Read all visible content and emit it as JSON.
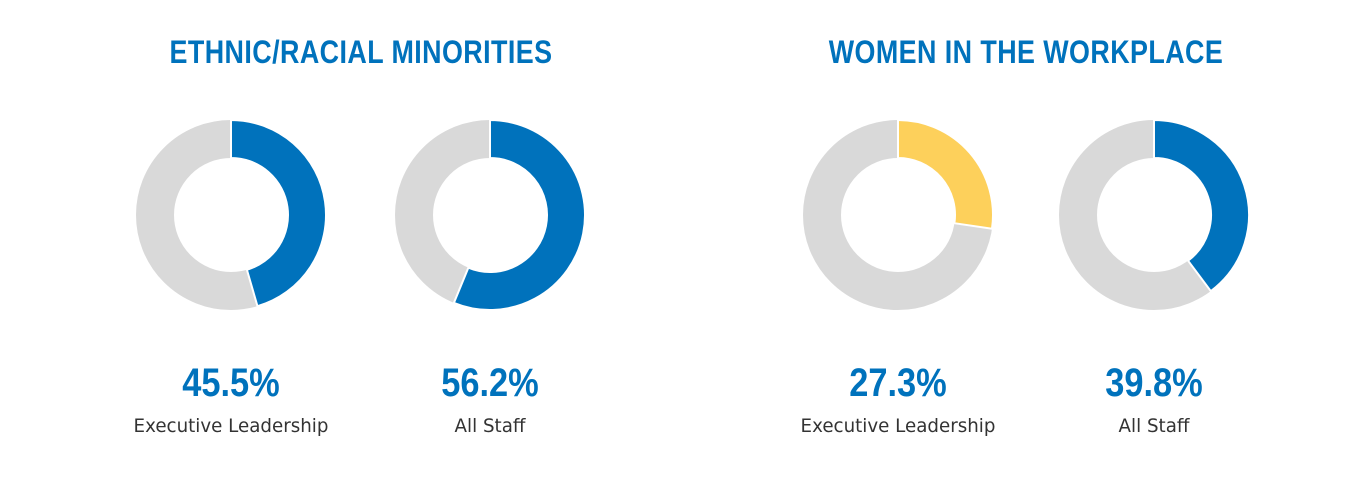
{
  "colors": {
    "blue": "#0072bc",
    "yellow": "#fdd05b",
    "track": "#d9d9d9",
    "title": "#0072bc"
  },
  "sections": [
    {
      "title": "ETHNIC/RACIAL MINORITIES"
    },
    {
      "title": "WOMEN IN THE WORKPLACE"
    }
  ],
  "chart_data": [
    {
      "type": "pie",
      "group": "ETHNIC/RACIAL MINORITIES",
      "label": "Executive Leadership",
      "value_label": "45.5%",
      "value": 45.5,
      "color": "#0072bc"
    },
    {
      "type": "pie",
      "group": "ETHNIC/RACIAL MINORITIES",
      "label": "All Staff",
      "value_label": "56.2%",
      "value": 56.2,
      "color": "#0072bc"
    },
    {
      "type": "pie",
      "group": "WOMEN IN THE WORKPLACE",
      "label": "Executive Leadership",
      "value_label": "27.3%",
      "value": 27.3,
      "color": "#fdd05b"
    },
    {
      "type": "pie",
      "group": "WOMEN IN THE WORKPLACE",
      "label": "All Staff",
      "value_label": "39.8%",
      "value": 39.8,
      "color": "#0072bc"
    }
  ]
}
